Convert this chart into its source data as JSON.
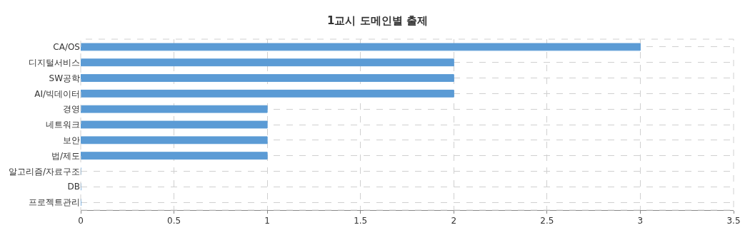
{
  "chart_data": {
    "type": "bar",
    "orientation": "horizontal",
    "title": "1교시 도메인별 출제",
    "categories": [
      "CA/OS",
      "디지털서비스",
      "SW공학",
      "AI/빅데이터",
      "경영",
      "네트워크",
      "보안",
      "법/제도",
      "알고리즘/자료구조",
      "DB",
      "프로젝트관리"
    ],
    "values": [
      3,
      2,
      2,
      2,
      1,
      1,
      1,
      1,
      0,
      0,
      0
    ],
    "color": "#5b9bd5",
    "xlim": [
      0,
      3.5
    ],
    "xticks": [
      0,
      0.5,
      1,
      1.5,
      2,
      2.5,
      3,
      3.5
    ],
    "grid": true
  }
}
